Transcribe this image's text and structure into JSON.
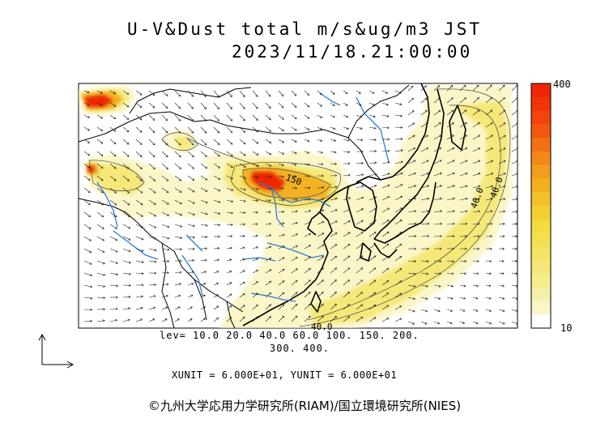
{
  "title": "U-V&Dust total m/s&ug/m3 JST",
  "datetime": "2023/11/18.21:00:00",
  "levels_line1": "lev= 10.0 20.0 40.0 60.0 100. 150. 200.",
  "levels_line2": "300. 400.",
  "units_line": "XUNIT = 6.000E+01, YUNIT = 6.000E+01",
  "copyright": "©九州大学応用力学研究所(RIAM)/国立環境研究所(NIES)",
  "colorbar": {
    "max_label": "400",
    "min_label": "10",
    "colors": [
      "#ffffff",
      "#fbf6c8",
      "#f8f0a8",
      "#f6ec8e",
      "#f5e878",
      "#f4e464",
      "#f3e050",
      "#f2dc40",
      "#f2d030",
      "#f2c028",
      "#f2b020",
      "#f29e1c",
      "#f28818",
      "#f27014",
      "#f25810",
      "#f2440c",
      "#f03408",
      "#ee2606"
    ]
  },
  "contour_labels": [
    "150",
    "40.0",
    "40.0",
    "40.0"
  ],
  "colors": {
    "land_line": "#000000",
    "rivers": "#2a7cd8",
    "low_dust": "#fbf6c8",
    "mid_dust": "#f5e878",
    "high_dust": "#f2b020",
    "peak_dust": "#ee2606"
  }
}
